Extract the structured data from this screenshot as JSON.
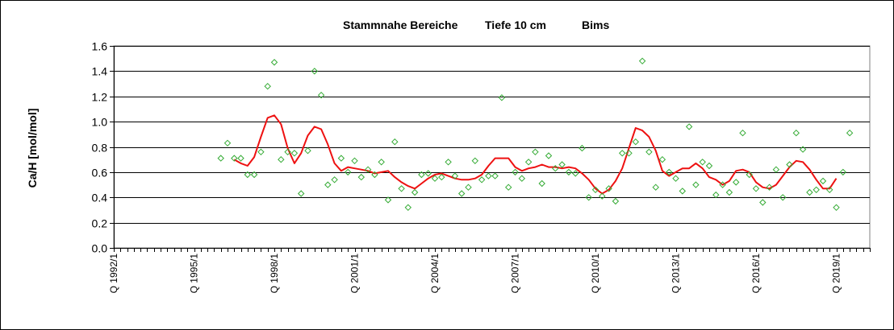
{
  "chart_data": {
    "type": "scatter",
    "title_parts": [
      "Stammnahe Bereiche",
      "Tiefe  10 cm",
      "Bims"
    ],
    "ylabel": "Ca/H [mol/mol]",
    "xlabel": "",
    "ylim": [
      0,
      1.6
    ],
    "yticks": [
      "0.0",
      "0.2",
      "0.4",
      "0.6",
      "0.8",
      "1.0",
      "1.2",
      "1.4",
      "1.6"
    ],
    "xlim": [
      "1992/1",
      "2020/2"
    ],
    "xticks": [
      {
        "label": "Q 1992/1",
        "quarter": "1992/1"
      },
      {
        "label": "Q 1995/1",
        "quarter": "1995/1"
      },
      {
        "label": "Q 1998/1",
        "quarter": "1998/1"
      },
      {
        "label": "Q 2001/1",
        "quarter": "2001/1"
      },
      {
        "label": "Q 2004/1",
        "quarter": "2004/1"
      },
      {
        "label": "Q 2007/1",
        "quarter": "2007/1"
      },
      {
        "label": "Q 2010/1",
        "quarter": "2010/1"
      },
      {
        "label": "Q 2013/1",
        "quarter": "2013/1"
      },
      {
        "label": "Q 2016/1",
        "quarter": "2016/1"
      },
      {
        "label": "Q 2019/1",
        "quarter": "2019/1"
      }
    ],
    "grid": "horizontal",
    "legend": "none",
    "series": [
      {
        "kind": "points",
        "marker": "diamond-open",
        "color": "#33aa33",
        "points": [
          {
            "x": "1996/1",
            "y": 0.71
          },
          {
            "x": "1996/2",
            "y": 0.83
          },
          {
            "x": "1996/3",
            "y": 0.71
          },
          {
            "x": "1996/4",
            "y": 0.71
          },
          {
            "x": "1997/1",
            "y": 0.58
          },
          {
            "x": "1997/2",
            "y": 0.58
          },
          {
            "x": "1997/3",
            "y": 0.76
          },
          {
            "x": "1997/4",
            "y": 1.28
          },
          {
            "x": "1998/1",
            "y": 1.47
          },
          {
            "x": "1998/2",
            "y": 0.7
          },
          {
            "x": "1998/3",
            "y": 0.76
          },
          {
            "x": "1998/4",
            "y": 0.75
          },
          {
            "x": "1999/1",
            "y": 0.43
          },
          {
            "x": "1999/2",
            "y": 0.77
          },
          {
            "x": "1999/3",
            "y": 1.4
          },
          {
            "x": "1999/4",
            "y": 1.21
          },
          {
            "x": "2000/1",
            "y": 0.5
          },
          {
            "x": "2000/2",
            "y": 0.54
          },
          {
            "x": "2000/3",
            "y": 0.71
          },
          {
            "x": "2000/4",
            "y": 0.6
          },
          {
            "x": "2001/1",
            "y": 0.69
          },
          {
            "x": "2001/2",
            "y": 0.56
          },
          {
            "x": "2001/3",
            "y": 0.62
          },
          {
            "x": "2001/4",
            "y": 0.58
          },
          {
            "x": "2002/1",
            "y": 0.68
          },
          {
            "x": "2002/2",
            "y": 0.38
          },
          {
            "x": "2002/3",
            "y": 0.84
          },
          {
            "x": "2002/4",
            "y": 0.47
          },
          {
            "x": "2003/1",
            "y": 0.32
          },
          {
            "x": "2003/2",
            "y": 0.44
          },
          {
            "x": "2003/3",
            "y": 0.58
          },
          {
            "x": "2003/4",
            "y": 0.59
          },
          {
            "x": "2004/1",
            "y": 0.55
          },
          {
            "x": "2004/2",
            "y": 0.56
          },
          {
            "x": "2004/3",
            "y": 0.68
          },
          {
            "x": "2004/4",
            "y": 0.57
          },
          {
            "x": "2005/1",
            "y": 0.43
          },
          {
            "x": "2005/2",
            "y": 0.48
          },
          {
            "x": "2005/3",
            "y": 0.69
          },
          {
            "x": "2005/4",
            "y": 0.54
          },
          {
            "x": "2006/1",
            "y": 0.57
          },
          {
            "x": "2006/2",
            "y": 0.57
          },
          {
            "x": "2006/3",
            "y": 1.19
          },
          {
            "x": "2006/4",
            "y": 0.48
          },
          {
            "x": "2007/1",
            "y": 0.6
          },
          {
            "x": "2007/2",
            "y": 0.55
          },
          {
            "x": "2007/3",
            "y": 0.68
          },
          {
            "x": "2007/4",
            "y": 0.76
          },
          {
            "x": "2008/1",
            "y": 0.51
          },
          {
            "x": "2008/2",
            "y": 0.73
          },
          {
            "x": "2008/3",
            "y": 0.63
          },
          {
            "x": "2008/4",
            "y": 0.66
          },
          {
            "x": "2009/1",
            "y": 0.6
          },
          {
            "x": "2009/2",
            "y": 0.59
          },
          {
            "x": "2009/3",
            "y": 0.79
          },
          {
            "x": "2009/4",
            "y": 0.4
          },
          {
            "x": "2010/1",
            "y": 0.46
          },
          {
            "x": "2010/2",
            "y": 0.41
          },
          {
            "x": "2010/3",
            "y": 0.47
          },
          {
            "x": "2010/4",
            "y": 0.37
          },
          {
            "x": "2011/1",
            "y": 0.75
          },
          {
            "x": "2011/2",
            "y": 0.75
          },
          {
            "x": "2011/3",
            "y": 0.84
          },
          {
            "x": "2011/4",
            "y": 1.48
          },
          {
            "x": "2012/1",
            "y": 0.76
          },
          {
            "x": "2012/2",
            "y": 0.48
          },
          {
            "x": "2012/3",
            "y": 0.7
          },
          {
            "x": "2012/4",
            "y": 0.6
          },
          {
            "x": "2013/1",
            "y": 0.55
          },
          {
            "x": "2013/2",
            "y": 0.45
          },
          {
            "x": "2013/3",
            "y": 0.96
          },
          {
            "x": "2013/4",
            "y": 0.5
          },
          {
            "x": "2014/1",
            "y": 0.68
          },
          {
            "x": "2014/2",
            "y": 0.65
          },
          {
            "x": "2014/3",
            "y": 0.42
          },
          {
            "x": "2014/4",
            "y": 0.5
          },
          {
            "x": "2015/1",
            "y": 0.44
          },
          {
            "x": "2015/2",
            "y": 0.52
          },
          {
            "x": "2015/3",
            "y": 0.91
          },
          {
            "x": "2015/4",
            "y": 0.58
          },
          {
            "x": "2016/1",
            "y": 0.47
          },
          {
            "x": "2016/2",
            "y": 0.36
          },
          {
            "x": "2016/3",
            "y": 0.48
          },
          {
            "x": "2016/4",
            "y": 0.62
          },
          {
            "x": "2017/1",
            "y": 0.4
          },
          {
            "x": "2017/2",
            "y": 0.66
          },
          {
            "x": "2017/3",
            "y": 0.91
          },
          {
            "x": "2017/4",
            "y": 0.78
          },
          {
            "x": "2018/1",
            "y": 0.44
          },
          {
            "x": "2018/2",
            "y": 0.46
          },
          {
            "x": "2018/3",
            "y": 0.53
          },
          {
            "x": "2018/4",
            "y": 0.46
          },
          {
            "x": "2019/1",
            "y": 0.32
          },
          {
            "x": "2019/2",
            "y": 0.6
          },
          {
            "x": "2019/3",
            "y": 0.91
          }
        ]
      },
      {
        "kind": "line",
        "color": "#ee1111",
        "points": [
          {
            "x": "1996/3",
            "y": 0.7
          },
          {
            "x": "1996/4",
            "y": 0.67
          },
          {
            "x": "1997/1",
            "y": 0.65
          },
          {
            "x": "1997/2",
            "y": 0.72
          },
          {
            "x": "1997/3",
            "y": 0.88
          },
          {
            "x": "1997/4",
            "y": 1.03
          },
          {
            "x": "1998/1",
            "y": 1.05
          },
          {
            "x": "1998/2",
            "y": 0.98
          },
          {
            "x": "1998/3",
            "y": 0.79
          },
          {
            "x": "1998/4",
            "y": 0.67
          },
          {
            "x": "1999/1",
            "y": 0.75
          },
          {
            "x": "1999/2",
            "y": 0.89
          },
          {
            "x": "1999/3",
            "y": 0.96
          },
          {
            "x": "1999/4",
            "y": 0.94
          },
          {
            "x": "2000/1",
            "y": 0.82
          },
          {
            "x": "2000/2",
            "y": 0.67
          },
          {
            "x": "2000/3",
            "y": 0.61
          },
          {
            "x": "2000/4",
            "y": 0.64
          },
          {
            "x": "2001/1",
            "y": 0.63
          },
          {
            "x": "2001/2",
            "y": 0.62
          },
          {
            "x": "2001/3",
            "y": 0.61
          },
          {
            "x": "2001/4",
            "y": 0.59
          },
          {
            "x": "2002/1",
            "y": 0.6
          },
          {
            "x": "2002/2",
            "y": 0.61
          },
          {
            "x": "2002/3",
            "y": 0.56
          },
          {
            "x": "2002/4",
            "y": 0.52
          },
          {
            "x": "2003/1",
            "y": 0.49
          },
          {
            "x": "2003/2",
            "y": 0.47
          },
          {
            "x": "2003/3",
            "y": 0.51
          },
          {
            "x": "2003/4",
            "y": 0.55
          },
          {
            "x": "2004/1",
            "y": 0.58
          },
          {
            "x": "2004/2",
            "y": 0.59
          },
          {
            "x": "2004/3",
            "y": 0.57
          },
          {
            "x": "2004/4",
            "y": 0.55
          },
          {
            "x": "2005/1",
            "y": 0.54
          },
          {
            "x": "2005/2",
            "y": 0.54
          },
          {
            "x": "2005/3",
            "y": 0.55
          },
          {
            "x": "2005/4",
            "y": 0.58
          },
          {
            "x": "2006/1",
            "y": 0.65
          },
          {
            "x": "2006/2",
            "y": 0.71
          },
          {
            "x": "2006/3",
            "y": 0.71
          },
          {
            "x": "2006/4",
            "y": 0.71
          },
          {
            "x": "2007/1",
            "y": 0.64
          },
          {
            "x": "2007/2",
            "y": 0.61
          },
          {
            "x": "2007/3",
            "y": 0.63
          },
          {
            "x": "2007/4",
            "y": 0.64
          },
          {
            "x": "2008/1",
            "y": 0.66
          },
          {
            "x": "2008/2",
            "y": 0.64
          },
          {
            "x": "2008/3",
            "y": 0.64
          },
          {
            "x": "2008/4",
            "y": 0.63
          },
          {
            "x": "2009/1",
            "y": 0.64
          },
          {
            "x": "2009/2",
            "y": 0.63
          },
          {
            "x": "2009/3",
            "y": 0.59
          },
          {
            "x": "2009/4",
            "y": 0.54
          },
          {
            "x": "2010/1",
            "y": 0.47
          },
          {
            "x": "2010/2",
            "y": 0.43
          },
          {
            "x": "2010/3",
            "y": 0.46
          },
          {
            "x": "2010/4",
            "y": 0.53
          },
          {
            "x": "2011/1",
            "y": 0.63
          },
          {
            "x": "2011/2",
            "y": 0.79
          },
          {
            "x": "2011/3",
            "y": 0.95
          },
          {
            "x": "2011/4",
            "y": 0.93
          },
          {
            "x": "2012/1",
            "y": 0.88
          },
          {
            "x": "2012/2",
            "y": 0.77
          },
          {
            "x": "2012/3",
            "y": 0.61
          },
          {
            "x": "2012/4",
            "y": 0.57
          },
          {
            "x": "2013/1",
            "y": 0.6
          },
          {
            "x": "2013/2",
            "y": 0.63
          },
          {
            "x": "2013/3",
            "y": 0.63
          },
          {
            "x": "2013/4",
            "y": 0.67
          },
          {
            "x": "2014/1",
            "y": 0.63
          },
          {
            "x": "2014/2",
            "y": 0.56
          },
          {
            "x": "2014/3",
            "y": 0.54
          },
          {
            "x": "2014/4",
            "y": 0.5
          },
          {
            "x": "2015/1",
            "y": 0.53
          },
          {
            "x": "2015/2",
            "y": 0.61
          },
          {
            "x": "2015/3",
            "y": 0.62
          },
          {
            "x": "2015/4",
            "y": 0.6
          },
          {
            "x": "2016/1",
            "y": 0.52
          },
          {
            "x": "2016/2",
            "y": 0.48
          },
          {
            "x": "2016/3",
            "y": 0.47
          },
          {
            "x": "2016/4",
            "y": 0.5
          },
          {
            "x": "2017/1",
            "y": 0.57
          },
          {
            "x": "2017/2",
            "y": 0.64
          },
          {
            "x": "2017/3",
            "y": 0.69
          },
          {
            "x": "2017/4",
            "y": 0.68
          },
          {
            "x": "2018/1",
            "y": 0.62
          },
          {
            "x": "2018/2",
            "y": 0.54
          },
          {
            "x": "2018/3",
            "y": 0.47
          },
          {
            "x": "2018/4",
            "y": 0.47
          },
          {
            "x": "2019/1",
            "y": 0.55
          }
        ]
      }
    ]
  }
}
